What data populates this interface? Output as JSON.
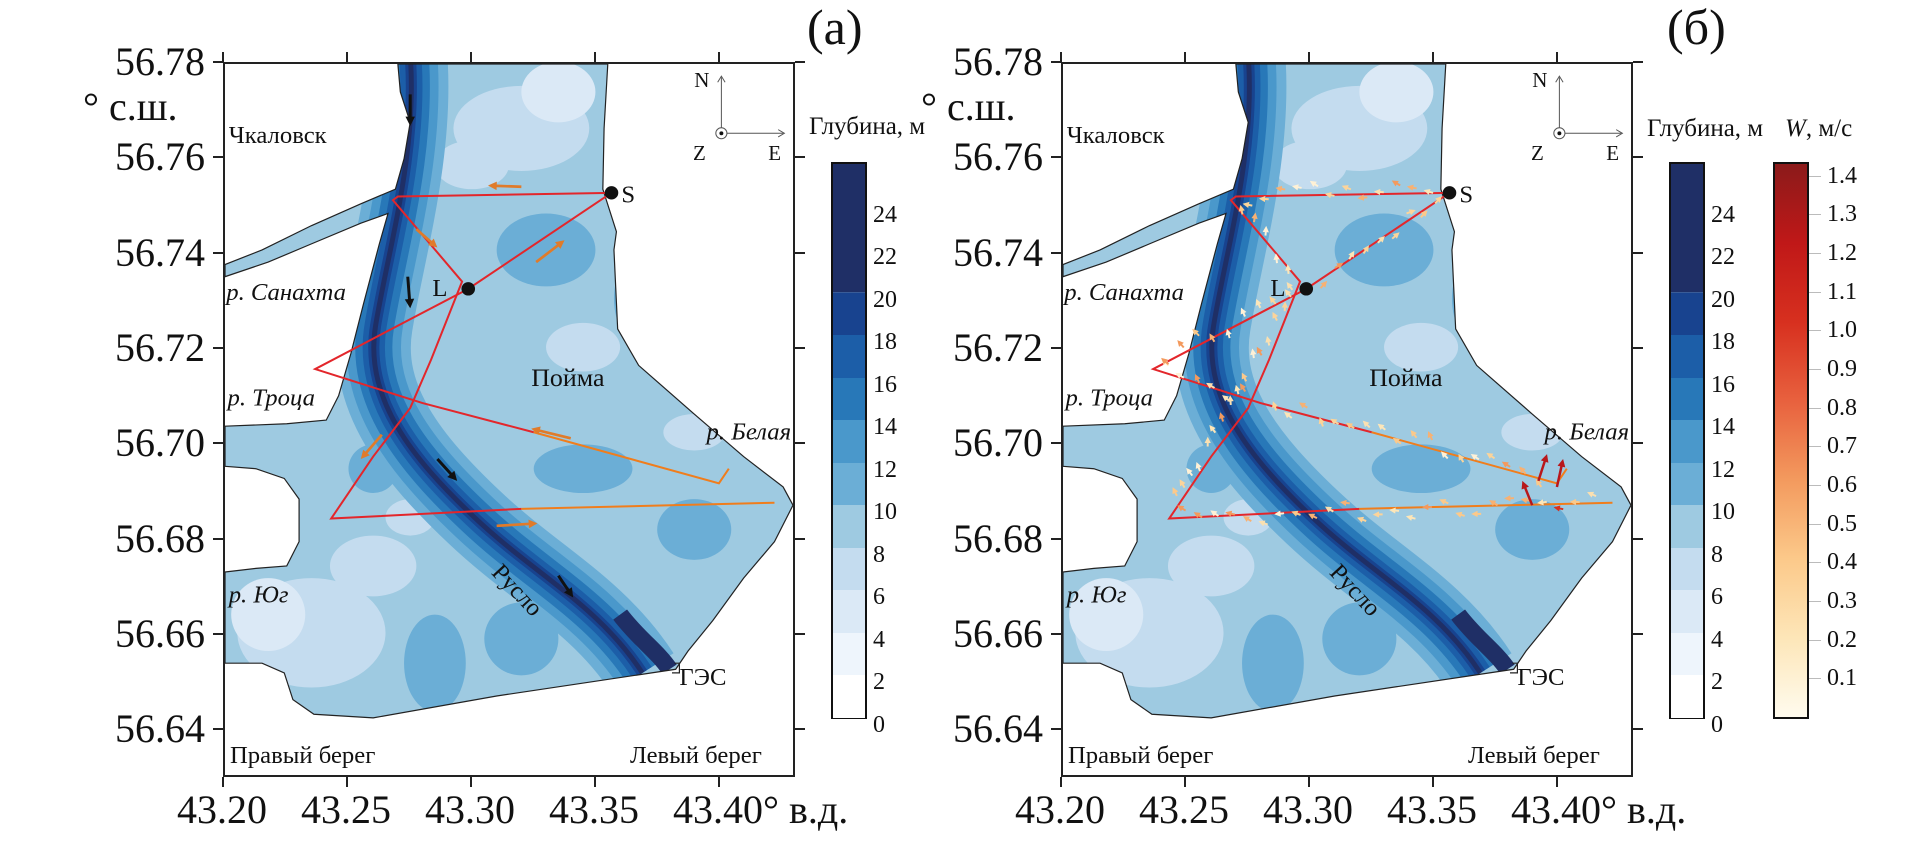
{
  "panels": [
    {
      "label": "(a)",
      "colorbars": [
        "depth"
      ]
    },
    {
      "label": "(б)",
      "colorbars": [
        "depth",
        "velocity"
      ]
    }
  ],
  "axes": {
    "y_ticks": [
      "56.78",
      "56.76",
      "56.74",
      "56.72",
      "56.70",
      "56.68",
      "56.66",
      "56.64"
    ],
    "y_unit": "° с.ш.",
    "x_ticks": [
      "43.20",
      "43.25",
      "43.30",
      "43.35",
      "43.40"
    ],
    "x_unit": "° в.д."
  },
  "map_labels": {
    "town": "Чкаловск",
    "river_sanakhta": "р. Санахта",
    "river_troca": "р. Троца",
    "floodplain": "Пойма",
    "river_belaya": "р. Белая",
    "river_yug": "р. Юг",
    "channel": "Русло",
    "dam": "ГЭС",
    "right_bank": "Правый берег",
    "left_bank": "Левый берег",
    "station_s": "S",
    "station_l": "L"
  },
  "compass": {
    "north": "N",
    "east": "E",
    "z": "Z"
  },
  "colorbars": {
    "depth": {
      "title": "Глубина, м",
      "ticks": [
        "0",
        "2",
        "4",
        "6",
        "8",
        "10",
        "12",
        "14",
        "16",
        "18",
        "20",
        "22",
        "24"
      ],
      "max": 26,
      "levels": [
        {
          "from": 0,
          "to": 2,
          "color": "#ffffff"
        },
        {
          "from": 2,
          "to": 4,
          "color": "#eef5fc"
        },
        {
          "from": 4,
          "to": 6,
          "color": "#dbe9f6"
        },
        {
          "from": 6,
          "to": 8,
          "color": "#c4dcef"
        },
        {
          "from": 8,
          "to": 10,
          "color": "#9ecae1"
        },
        {
          "from": 10,
          "to": 12,
          "color": "#6baed6"
        },
        {
          "from": 12,
          "to": 14,
          "color": "#4a98cb"
        },
        {
          "from": 14,
          "to": 16,
          "color": "#2878b8"
        },
        {
          "from": 16,
          "to": 18,
          "color": "#1c5ea8"
        },
        {
          "from": 18,
          "to": 20,
          "color": "#18438f"
        },
        {
          "from": 20,
          "to": 26,
          "color": "#1f2f66"
        }
      ]
    },
    "velocity": {
      "title_var": "W",
      "title_unit": ", м/с",
      "ticks": [
        "0.1",
        "0.2",
        "0.3",
        "0.4",
        "0.5",
        "0.6",
        "0.7",
        "0.8",
        "0.9",
        "1.0",
        "1.1",
        "1.2",
        "1.3",
        "1.4"
      ],
      "max": 1.43,
      "gradient": [
        "#fffbee",
        "#fde6b8",
        "#fcc98a",
        "#f39a5e",
        "#e8613e",
        "#d7301f",
        "#c01818",
        "#8b1a1a"
      ]
    }
  },
  "colors": {
    "track_red": "#e3262b",
    "track_orange": "#f07d1c",
    "arrow_orange": "#e07b2a",
    "arrow_black": "#111111",
    "coast": "#222222"
  }
}
